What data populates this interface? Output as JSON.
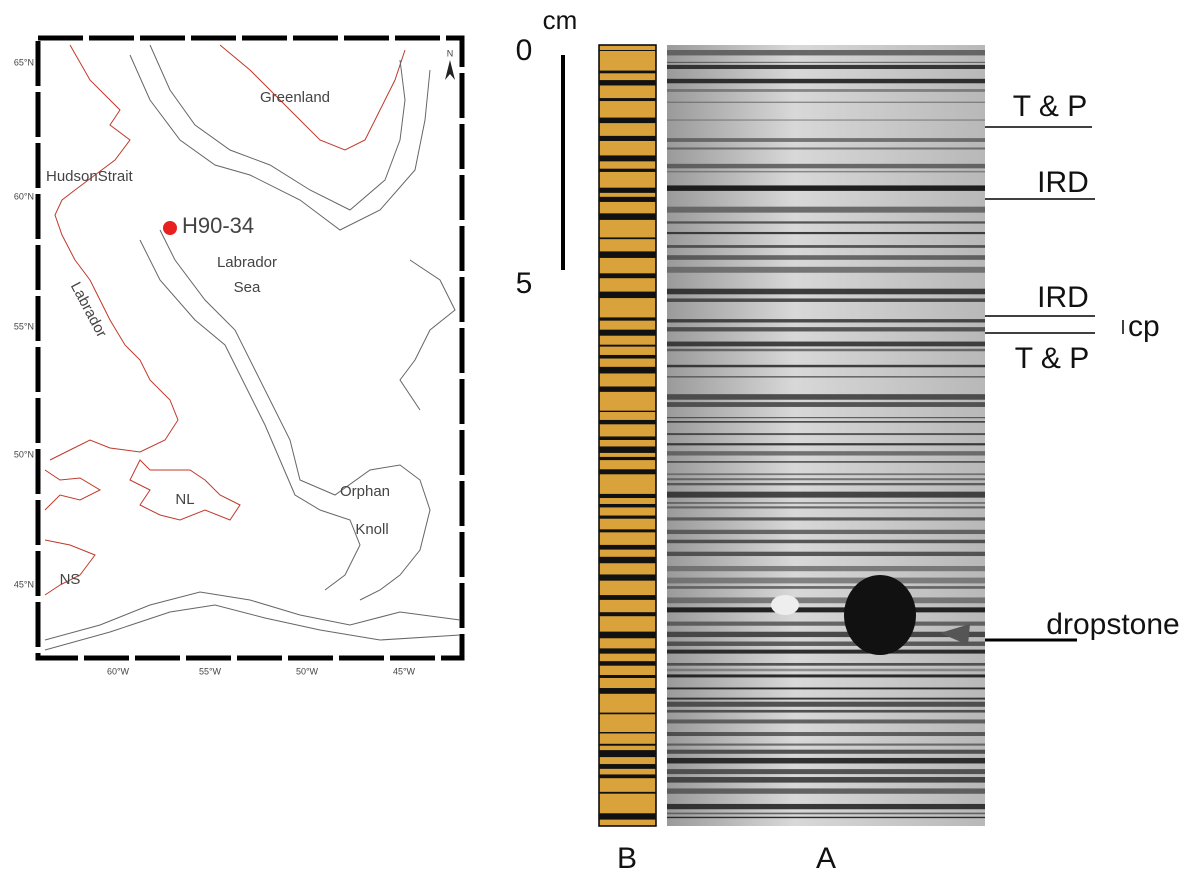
{
  "map": {
    "lat_labels": [
      "65°N",
      "60°N",
      "55°N",
      "50°N",
      "45°N"
    ],
    "lon_labels": [
      "60°W",
      "55°W",
      "50°W",
      "45°W"
    ],
    "north": "N",
    "places": {
      "greenland": "Greenland",
      "hudson_strait": "HudsonStrait",
      "labrador": "Labrador",
      "site": "H90-34",
      "labrador_sea": [
        "Labrador",
        "Sea"
      ],
      "nl": "NL",
      "ns": "NS",
      "orphan_knoll": [
        "Orphan",
        "Knoll"
      ]
    }
  },
  "core": {
    "unit": "cm",
    "scale": [
      "0",
      "5"
    ],
    "annotations": [
      "T & P",
      "IRD",
      "IRD",
      "cp",
      "T & P",
      "dropstone"
    ],
    "columns": [
      "B",
      "A"
    ]
  }
}
